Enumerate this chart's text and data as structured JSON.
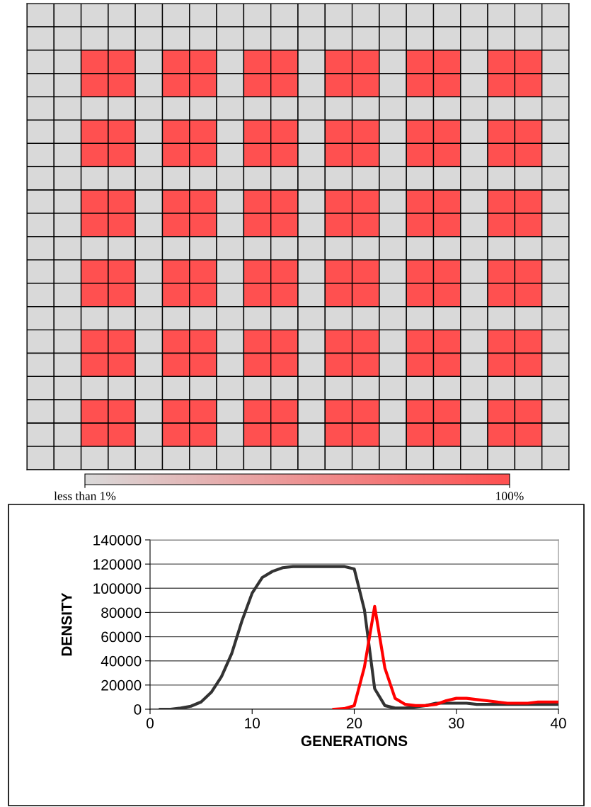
{
  "chart_data": [
    {
      "type": "heatmap",
      "categories": [
        null,
        null,
        null,
        null,
        null,
        null,
        null,
        null,
        null,
        null,
        null,
        null,
        null,
        null,
        null,
        null,
        null,
        null,
        null,
        null
      ],
      "y_categories": [
        null,
        null,
        null,
        null,
        null,
        null,
        null,
        null,
        null,
        null,
        null,
        null,
        null,
        null,
        null,
        null,
        null,
        null,
        null,
        null
      ],
      "cells": [
        [
          1,
          1,
          1,
          1,
          1,
          1,
          1,
          1,
          1,
          1,
          1,
          1,
          1,
          1,
          1,
          1,
          1,
          1,
          1,
          1
        ],
        [
          1,
          1,
          1,
          1,
          1,
          1,
          1,
          1,
          1,
          1,
          1,
          1,
          1,
          1,
          1,
          1,
          1,
          1,
          1,
          1
        ],
        [
          1,
          1,
          100,
          100,
          1,
          100,
          100,
          1,
          100,
          100,
          1,
          100,
          100,
          1,
          100,
          100,
          1,
          100,
          100,
          1
        ],
        [
          1,
          1,
          100,
          100,
          1,
          100,
          100,
          1,
          100,
          100,
          1,
          100,
          100,
          1,
          100,
          100,
          1,
          100,
          100,
          1
        ],
        [
          1,
          1,
          1,
          1,
          1,
          1,
          1,
          1,
          1,
          1,
          1,
          1,
          1,
          1,
          1,
          1,
          1,
          1,
          1,
          1
        ],
        [
          1,
          1,
          100,
          100,
          1,
          100,
          100,
          1,
          100,
          100,
          1,
          100,
          100,
          1,
          100,
          100,
          1,
          100,
          100,
          1
        ],
        [
          1,
          1,
          100,
          100,
          1,
          100,
          100,
          1,
          100,
          100,
          1,
          100,
          100,
          1,
          100,
          100,
          1,
          100,
          100,
          1
        ],
        [
          1,
          1,
          1,
          1,
          1,
          1,
          1,
          1,
          1,
          1,
          1,
          1,
          1,
          1,
          1,
          1,
          1,
          1,
          1,
          1
        ],
        [
          1,
          1,
          100,
          100,
          1,
          100,
          100,
          1,
          100,
          100,
          1,
          100,
          100,
          1,
          100,
          100,
          1,
          100,
          100,
          1
        ],
        [
          1,
          1,
          100,
          100,
          1,
          100,
          100,
          1,
          100,
          100,
          1,
          100,
          100,
          1,
          100,
          100,
          1,
          100,
          100,
          1
        ],
        [
          1,
          1,
          1,
          1,
          1,
          1,
          1,
          1,
          1,
          1,
          1,
          1,
          1,
          1,
          1,
          1,
          1,
          1,
          1,
          1
        ],
        [
          1,
          1,
          100,
          100,
          1,
          100,
          100,
          1,
          100,
          100,
          1,
          100,
          100,
          1,
          100,
          100,
          1,
          100,
          100,
          1
        ],
        [
          1,
          1,
          100,
          100,
          1,
          100,
          100,
          1,
          100,
          100,
          1,
          100,
          100,
          1,
          100,
          100,
          1,
          100,
          100,
          1
        ],
        [
          1,
          1,
          1,
          1,
          1,
          1,
          1,
          1,
          1,
          1,
          1,
          1,
          1,
          1,
          1,
          1,
          1,
          1,
          1,
          1
        ],
        [
          1,
          1,
          100,
          100,
          1,
          100,
          100,
          1,
          100,
          100,
          1,
          100,
          100,
          1,
          100,
          100,
          1,
          100,
          100,
          1
        ],
        [
          1,
          1,
          100,
          100,
          1,
          100,
          100,
          1,
          100,
          100,
          1,
          100,
          100,
          1,
          100,
          100,
          1,
          100,
          100,
          1
        ],
        [
          1,
          1,
          1,
          1,
          1,
          1,
          1,
          1,
          1,
          1,
          1,
          1,
          1,
          1,
          1,
          1,
          1,
          1,
          1,
          1
        ],
        [
          1,
          1,
          100,
          100,
          1,
          100,
          100,
          1,
          100,
          100,
          1,
          100,
          100,
          1,
          100,
          100,
          1,
          100,
          100,
          1
        ],
        [
          1,
          1,
          100,
          100,
          1,
          100,
          100,
          1,
          100,
          100,
          1,
          100,
          100,
          1,
          100,
          100,
          1,
          100,
          100,
          1
        ],
        [
          1,
          1,
          1,
          1,
          1,
          1,
          1,
          1,
          1,
          1,
          1,
          1,
          1,
          1,
          1,
          1,
          1,
          1,
          1,
          1
        ]
      ],
      "colors": [
        "#d9d9d9",
        "#ff5050"
      ],
      "clim": [
        1,
        100
      ],
      "cticks": [
        {
          "value": 1,
          "label": "less than 1%"
        },
        {
          "value": 100,
          "label": "100%"
        }
      ]
    },
    {
      "type": "line",
      "xlabel": "GENERATIONS",
      "ylabel": "DENSITY",
      "xlim": [
        0,
        40
      ],
      "xticks": [
        0,
        10,
        20,
        30,
        40
      ],
      "ylim": [
        0,
        140000
      ],
      "yticks": [
        0,
        20000,
        40000,
        60000,
        80000,
        100000,
        120000,
        140000
      ],
      "grid": "y",
      "legend": false,
      "series": [
        {
          "color": "#333333",
          "x": [
            1,
            2,
            3,
            4,
            5,
            6,
            7,
            8,
            9,
            10,
            11,
            12,
            13,
            14,
            15,
            16,
            17,
            18,
            19,
            20,
            21,
            22,
            23,
            24,
            25,
            26,
            27,
            28,
            29,
            30,
            31,
            32,
            33,
            34,
            35,
            36,
            37,
            38,
            39,
            40
          ],
          "values": [
            0,
            0,
            1000,
            2500,
            6000,
            14000,
            27000,
            46000,
            73000,
            96000,
            109000,
            114000,
            117000,
            118000,
            118000,
            118000,
            118000,
            118000,
            118000,
            116000,
            82000,
            17000,
            3000,
            1000,
            1000,
            2000,
            3000,
            5000,
            5000,
            5000,
            5000,
            4000,
            4000,
            4000,
            4000,
            4000,
            4000,
            4000,
            4000,
            4000
          ]
        },
        {
          "color": "#ff0000",
          "x": [
            18,
            19,
            20,
            21,
            22,
            23,
            24,
            25,
            26,
            27,
            28,
            29,
            30,
            31,
            32,
            33,
            34,
            35,
            36,
            37,
            38,
            39,
            40
          ],
          "values": [
            0,
            500,
            3000,
            35000,
            85000,
            34000,
            9000,
            4000,
            3000,
            3000,
            4000,
            7000,
            9000,
            9000,
            8000,
            7000,
            6000,
            5000,
            5000,
            5000,
            6000,
            6000,
            6000
          ]
        }
      ]
    }
  ]
}
